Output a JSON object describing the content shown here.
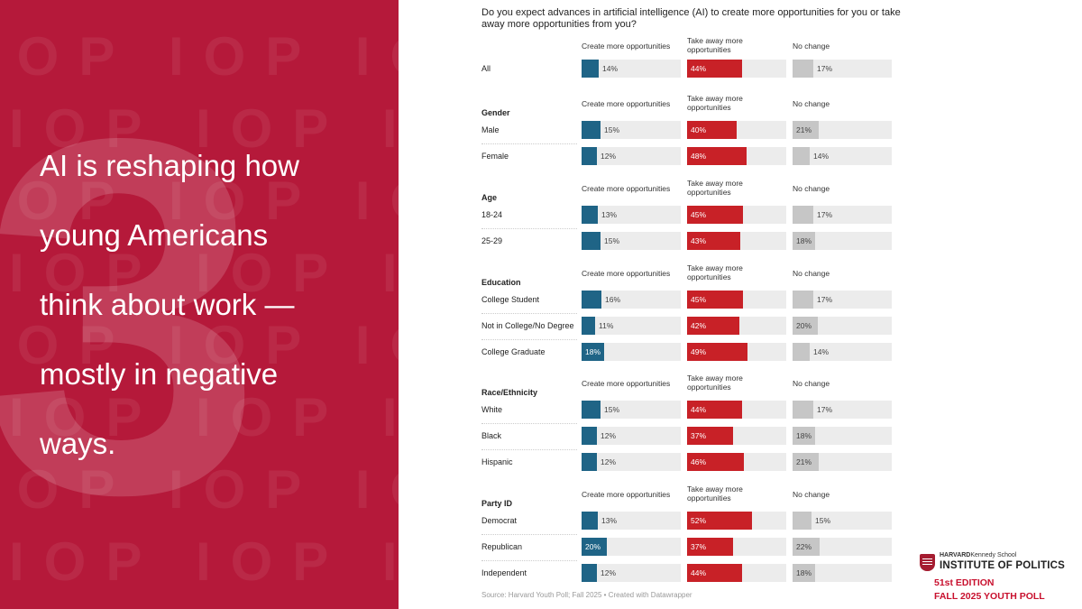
{
  "colors": {
    "panel": "#b5193a",
    "create": "#1f6486",
    "take_away": "#c82127",
    "no_change": "#c6c6c6",
    "track": "#ececec"
  },
  "left_panel": {
    "watermark_text": "IOP IOP IOP IOP",
    "big_number": "3",
    "headline": "AI is reshaping how young Americans think about work — mostly in negative ways."
  },
  "chart_data": {
    "type": "table",
    "title": "Do you expect advances in artificial intelligence (AI) to create more opportunities for you or take away more opportunities from you?",
    "columns": [
      "Create more opportunities",
      "Take away more opportunities",
      "No change"
    ],
    "unit": "%",
    "groups": [
      {
        "name": "",
        "rows": [
          {
            "label": "All",
            "values": [
              14,
              44,
              17
            ]
          }
        ]
      },
      {
        "name": "Gender",
        "rows": [
          {
            "label": "Male",
            "values": [
              15,
              40,
              21
            ]
          },
          {
            "label": "Female",
            "values": [
              12,
              48,
              14
            ]
          }
        ]
      },
      {
        "name": "Age",
        "rows": [
          {
            "label": "18-24",
            "values": [
              13,
              45,
              17
            ]
          },
          {
            "label": "25-29",
            "values": [
              15,
              43,
              18
            ]
          }
        ]
      },
      {
        "name": "Education",
        "rows": [
          {
            "label": "College Student",
            "values": [
              16,
              45,
              17
            ]
          },
          {
            "label": "Not in College/No Degree",
            "values": [
              11,
              42,
              20
            ]
          },
          {
            "label": "College Graduate",
            "values": [
              18,
              49,
              14
            ]
          }
        ]
      },
      {
        "name": "Race/Ethnicity",
        "rows": [
          {
            "label": "White",
            "values": [
              15,
              44,
              17
            ]
          },
          {
            "label": "Black",
            "values": [
              12,
              37,
              18
            ]
          },
          {
            "label": "Hispanic",
            "values": [
              12,
              46,
              21
            ]
          }
        ]
      },
      {
        "name": "Party ID",
        "rows": [
          {
            "label": "Democrat",
            "values": [
              13,
              52,
              15
            ]
          },
          {
            "label": "Republican",
            "values": [
              20,
              37,
              22
            ]
          },
          {
            "label": "Independent",
            "values": [
              12,
              44,
              18
            ]
          }
        ]
      }
    ],
    "source": "Source: Harvard Youth Poll; Fall 2025 • Created with Datawrapper"
  },
  "logo": {
    "harvard": "HARVARD",
    "school": "Kennedy School",
    "institute": "INSTITUTE OF POLITICS",
    "edition": "51st EDITION",
    "poll": "FALL 2025 YOUTH POLL"
  }
}
